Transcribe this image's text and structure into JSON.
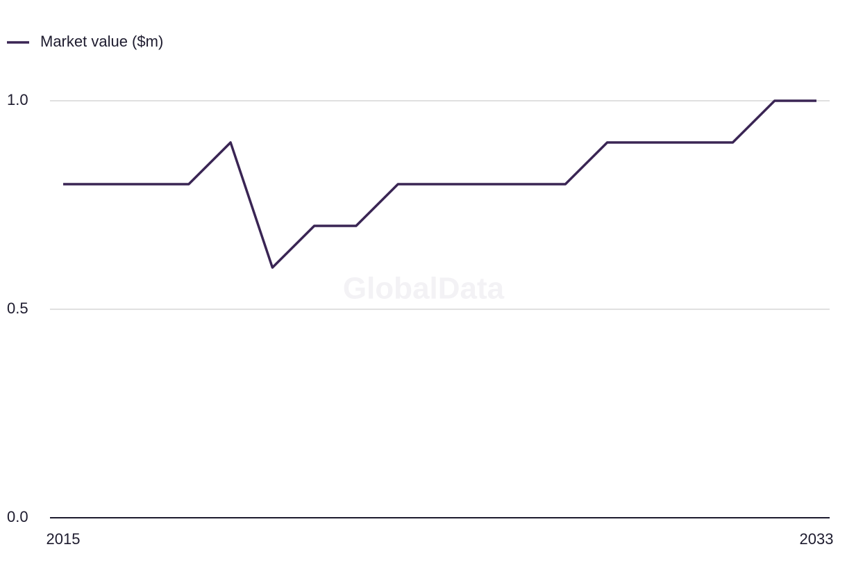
{
  "chart_data": {
    "type": "line",
    "watermark": "GlobalData",
    "x": [
      2015,
      2016,
      2017,
      2018,
      2019,
      2020,
      2021,
      2022,
      2023,
      2024,
      2025,
      2026,
      2027,
      2028,
      2029,
      2030,
      2031,
      2032,
      2033
    ],
    "series": [
      {
        "name": "Market value ($m)",
        "color": "#3a2554",
        "values": [
          0.8,
          0.8,
          0.8,
          0.8,
          0.9,
          0.6,
          0.7,
          0.7,
          0.8,
          0.8,
          0.8,
          0.8,
          0.8,
          0.9,
          0.9,
          0.9,
          0.9,
          1.0,
          1.0
        ]
      }
    ],
    "xlim": [
      2015,
      2033
    ],
    "xticks": [
      2015,
      2033
    ],
    "ylim": [
      0,
      1
    ],
    "yticks": [
      {
        "value": 0,
        "label": "0.0"
      },
      0.5,
      {
        "value": 1,
        "label": "1.0"
      }
    ],
    "grid": true,
    "legend": "top-left"
  }
}
